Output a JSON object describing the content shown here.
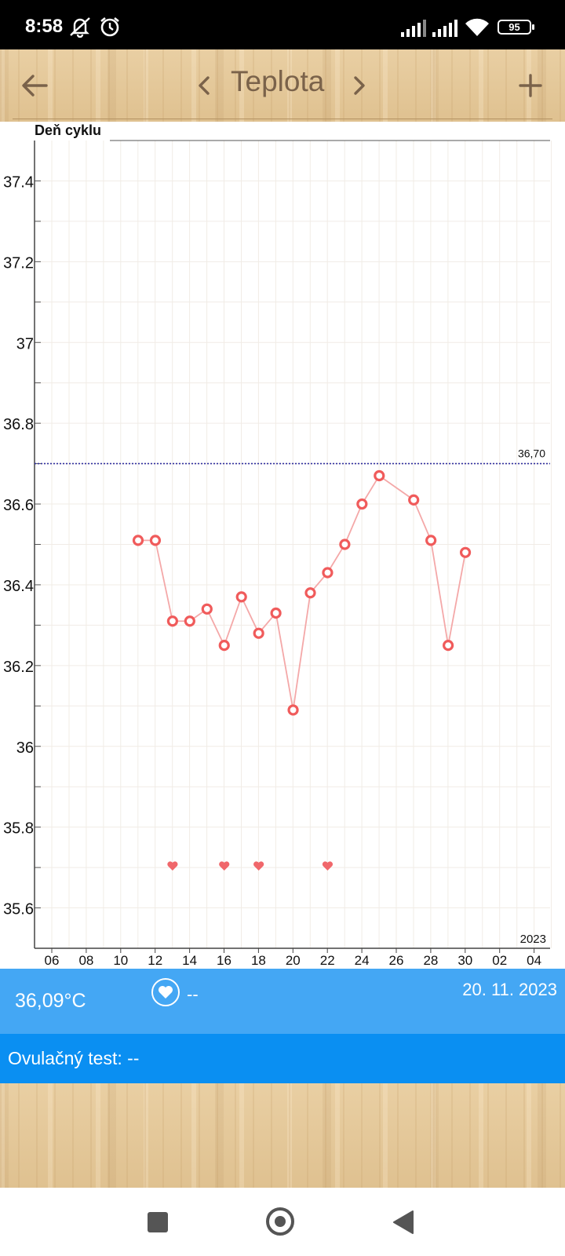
{
  "status_bar": {
    "time": "8:58",
    "battery": "95",
    "icons": [
      "notifications-off-icon",
      "alarm-icon",
      "signal-icon",
      "signal-icon",
      "wifi-icon",
      "battery-icon"
    ]
  },
  "app_bar": {
    "title": "Teplota",
    "icons": [
      "back-arrow-icon",
      "chevron-left-icon",
      "chevron-right-icon",
      "plus-icon"
    ]
  },
  "chart_data": {
    "type": "line",
    "title": "Deň cyklu",
    "x_tick_labels": [
      "06",
      "08",
      "10",
      "12",
      "14",
      "16",
      "18",
      "20",
      "22",
      "24",
      "26",
      "28",
      "30",
      "02",
      "04"
    ],
    "y_tick_labels": [
      "35.6",
      "35.8",
      "36",
      "36.2",
      "36.4",
      "36.6",
      "36.8",
      "37",
      "37.2",
      "37.4"
    ],
    "ylim": [
      35.5,
      37.5
    ],
    "year_label": "2023",
    "reference_line": {
      "value": 36.7,
      "label": "36,70",
      "color": "#3030a0"
    },
    "series": [
      {
        "x": [
          11,
          12,
          13,
          14,
          15,
          16,
          17,
          18,
          19,
          20,
          21,
          22,
          23,
          24,
          25,
          27,
          28,
          29,
          30
        ],
        "values": [
          36.51,
          36.51,
          36.31,
          36.31,
          36.34,
          36.25,
          36.37,
          36.28,
          36.33,
          36.09,
          36.38,
          36.43,
          36.5,
          36.6,
          36.67,
          36.61,
          36.51,
          36.25,
          36.48
        ],
        "color": "#f05b5b",
        "line_color": "#f4a8a8"
      }
    ],
    "intercourse_days": [
      13,
      16,
      18,
      22
    ],
    "grid": true
  },
  "info": {
    "temperature": "36,09°C",
    "heart_value": "--",
    "date": "20. 11. 2023",
    "ovulation_test": "Ovulačný test: --"
  },
  "colors": {
    "info_panel": "#44a7f4",
    "ovulation_bar": "#0a8ff2",
    "title_text": "#7a624a"
  }
}
